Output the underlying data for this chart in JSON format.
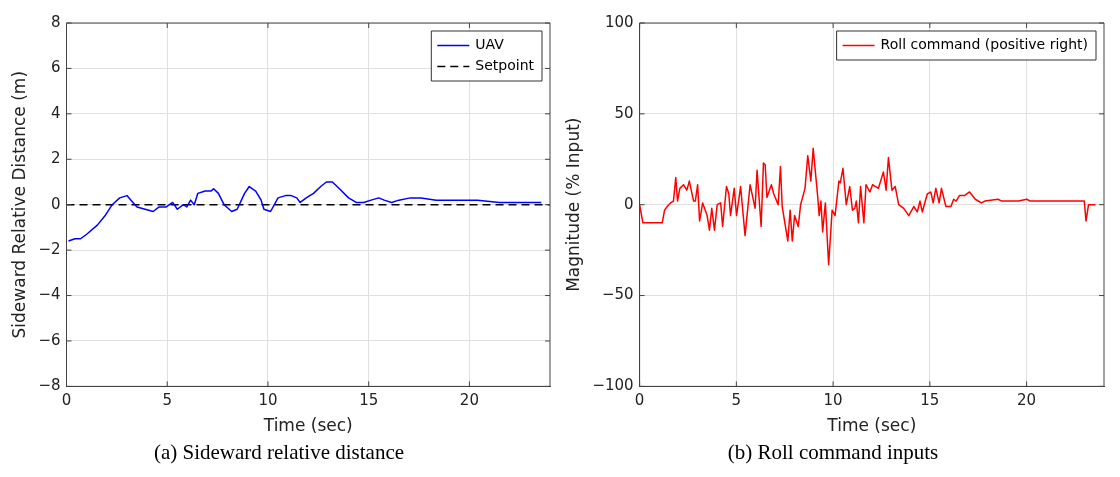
{
  "chart_data": [
    {
      "type": "line",
      "title": "(a) Sideward relative distance",
      "xlabel": "Time (sec)",
      "ylabel": "Sideward Relative Distance (m)",
      "xlim": [
        0,
        24
      ],
      "xticks": [
        0,
        5,
        10,
        15,
        20
      ],
      "ylim": [
        -8,
        8
      ],
      "yticks": [
        -8,
        -6,
        -4,
        -2,
        0,
        2,
        4,
        6,
        8
      ],
      "grid": true,
      "legend": "top right",
      "series": [
        {
          "name": "UAV",
          "color": "#0000ff",
          "line_style": "solid",
          "x": [
            0.1,
            0.42,
            0.7,
            1.0,
            1.53,
            1.9,
            2.27,
            2.64,
            3.0,
            3.2,
            3.5,
            3.9,
            4.3,
            4.6,
            4.95,
            5.27,
            5.5,
            5.8,
            5.97,
            6.16,
            6.34,
            6.52,
            6.88,
            7.17,
            7.3,
            7.54,
            7.82,
            8.2,
            8.47,
            8.84,
            9.07,
            9.39,
            9.66,
            9.8,
            10.13,
            10.5,
            10.87,
            11.15,
            11.43,
            11.6,
            11.9,
            12.26,
            12.62,
            12.9,
            13.2,
            13.55,
            14.0,
            14.38,
            14.75,
            15.12,
            15.5,
            15.77,
            16.14,
            16.5,
            17.06,
            17.6,
            18.35,
            19.28,
            20.4,
            21.5,
            22.6,
            23.57
          ],
          "values": [
            -1.6,
            -1.5,
            -1.5,
            -1.3,
            -0.9,
            -0.5,
            0.0,
            0.3,
            0.4,
            0.2,
            -0.1,
            -0.2,
            -0.3,
            -0.1,
            -0.1,
            0.1,
            -0.2,
            0.0,
            -0.1,
            0.2,
            0.0,
            0.5,
            0.6,
            0.6,
            0.7,
            0.5,
            0.0,
            -0.3,
            -0.2,
            0.5,
            0.8,
            0.6,
            0.2,
            -0.2,
            -0.3,
            0.3,
            0.4,
            0.4,
            0.3,
            0.1,
            0.3,
            0.5,
            0.8,
            1.0,
            1.0,
            0.7,
            0.3,
            0.1,
            0.1,
            0.2,
            0.3,
            0.2,
            0.1,
            0.2,
            0.3,
            0.3,
            0.2,
            0.2,
            0.2,
            0.1,
            0.1,
            0.1
          ]
        },
        {
          "name": "Setpoint",
          "color": "#000000",
          "line_style": "dashed",
          "x": [
            0,
            24
          ],
          "values": [
            0,
            0
          ]
        }
      ]
    },
    {
      "type": "line",
      "title": "(b) Roll command inputs",
      "xlabel": "Time (sec)",
      "ylabel": "Magnitude (% Input)",
      "xlim": [
        0,
        24
      ],
      "xticks": [
        0,
        5,
        10,
        15,
        20
      ],
      "ylim": [
        -100,
        100
      ],
      "yticks": [
        -100,
        -50,
        0,
        50,
        100
      ],
      "grid": true,
      "legend": "top right",
      "series": [
        {
          "name": "Roll command (positive right)",
          "color": "#ff0000",
          "line_style": "solid",
          "x": [
            0,
            0.17,
            1.17,
            1.29,
            1.43,
            1.6,
            1.75,
            1.87,
            1.96,
            2.08,
            2.27,
            2.44,
            2.57,
            2.79,
            2.88,
            3.0,
            3.1,
            3.26,
            3.49,
            3.61,
            3.73,
            3.87,
            4.01,
            4.19,
            4.29,
            4.49,
            4.61,
            4.7,
            4.89,
            5.01,
            5.22,
            5.45,
            5.71,
            5.97,
            6.07,
            6.28,
            6.4,
            6.49,
            6.58,
            6.81,
            6.93,
            7.16,
            7.28,
            7.37,
            7.66,
            7.78,
            7.89,
            8.01,
            8.2,
            8.32,
            8.55,
            8.69,
            8.85,
            8.97,
            9.2,
            9.28,
            9.37,
            9.46,
            9.6,
            9.77,
            9.95,
            10.1,
            10.3,
            10.37,
            10.51,
            10.68,
            10.86,
            11.0,
            11.12,
            11.2,
            11.31,
            11.42,
            11.59,
            11.7,
            11.9,
            12.04,
            12.34,
            12.6,
            12.74,
            12.86,
            13.04,
            13.21,
            13.39,
            13.65,
            13.91,
            14.17,
            14.35,
            14.49,
            14.61,
            14.87,
            15.05,
            15.17,
            15.31,
            15.48,
            15.6,
            15.83,
            16.09,
            16.23,
            16.36,
            16.53,
            16.79,
            17.05,
            17.35,
            17.66,
            17.84,
            18.53,
            18.71,
            19.41,
            19.58,
            20.01,
            20.19,
            20.63,
            21.15,
            21.94,
            22.98,
            23.07,
            23.2,
            23.56
          ],
          "values": [
            0,
            -10,
            -10,
            -3,
            -1,
            1,
            2,
            15,
            2,
            9,
            11,
            8,
            13,
            2,
            2,
            11,
            -9,
            1,
            -6,
            -14,
            -2,
            -14,
            0,
            1,
            -12,
            10,
            6,
            -6,
            9,
            -6,
            10,
            -17,
            11,
            -2,
            19,
            -12,
            23,
            22,
            4,
            11,
            6,
            0,
            21,
            -1,
            -20,
            -3,
            -20,
            -6,
            -12,
            0,
            9,
            27,
            13,
            31,
            5,
            -6,
            2,
            -15,
            1,
            -33,
            -3,
            -6,
            13,
            12,
            20,
            0,
            10,
            -3,
            -2,
            2,
            -10,
            10,
            -10,
            11,
            7,
            11,
            9,
            18,
            8,
            26,
            8,
            10,
            0,
            -2,
            -6,
            -1,
            -4,
            2,
            -4,
            6,
            7,
            1,
            9,
            1,
            9,
            -1,
            -1,
            3,
            2,
            5,
            5,
            7,
            3,
            1,
            2,
            3,
            2,
            2,
            2,
            3,
            2,
            2,
            2,
            2,
            2,
            -9,
            0,
            0
          ]
        }
      ]
    }
  ]
}
